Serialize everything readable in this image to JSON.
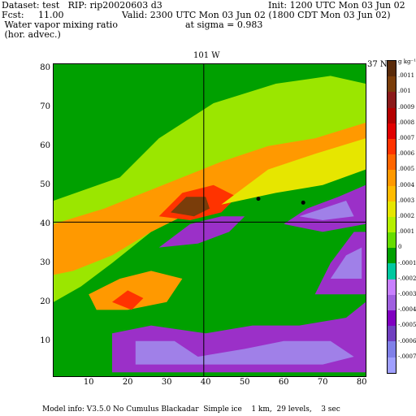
{
  "header": {
    "dataset_line": "Dataset: test   RIP: rip20020603 d3",
    "init_line": "Init: 1200 UTC Mon 03 Jun 02",
    "fcst_line": "Fcst:     11.00",
    "valid_line": "Valid: 2300 UTC Mon 03 Jun 02 (1800 CDT Mon 03 Jun 02)",
    "field_line1": " Water vapor mixing ratio",
    "field_line2": " (hor. advec.)",
    "sigma_line": "at sigma = 0.983"
  },
  "map": {
    "top_label": "101 W",
    "right_label": "37 N",
    "x_ticks": [
      "10",
      "20",
      "30",
      "40",
      "50",
      "60",
      "70",
      "80"
    ],
    "y_ticks": [
      "10",
      "20",
      "30",
      "40",
      "50",
      "60",
      "70",
      "80"
    ],
    "x_range": [
      1,
      81
    ],
    "y_range": [
      1,
      81
    ],
    "meridian_x": 39.5,
    "parallel_y": 40.5,
    "features": [
      {
        "name": "green-background-south",
        "color": "#00a000",
        "path": [
          [
            1,
            1
          ],
          [
            81,
            1
          ],
          [
            81,
            81
          ],
          [
            1,
            81
          ]
        ]
      },
      {
        "name": "dryline-lime-band",
        "color": "#9be600",
        "path": [
          [
            1,
            46
          ],
          [
            18,
            52
          ],
          [
            28,
            62
          ],
          [
            42,
            71
          ],
          [
            58,
            76
          ],
          [
            72,
            78
          ],
          [
            81,
            76
          ],
          [
            81,
            58
          ],
          [
            70,
            56
          ],
          [
            60,
            52
          ],
          [
            50,
            48
          ],
          [
            38,
            44
          ],
          [
            26,
            38
          ],
          [
            16,
            30
          ],
          [
            8,
            24
          ],
          [
            1,
            20
          ]
        ]
      },
      {
        "name": "moist-orange-axis",
        "color": "#ff9900",
        "path": [
          [
            1,
            40
          ],
          [
            14,
            44
          ],
          [
            24,
            48
          ],
          [
            34,
            52
          ],
          [
            44,
            56
          ],
          [
            56,
            60
          ],
          [
            68,
            62
          ],
          [
            81,
            66
          ],
          [
            81,
            56
          ],
          [
            70,
            52
          ],
          [
            58,
            50
          ],
          [
            46,
            47
          ],
          [
            36,
            43
          ],
          [
            26,
            38
          ],
          [
            16,
            32
          ],
          [
            6,
            28
          ],
          [
            1,
            27
          ]
        ]
      },
      {
        "name": "moist-red-core",
        "color": "#ff3300",
        "path": [
          [
            28,
            42
          ],
          [
            34,
            48
          ],
          [
            42,
            50
          ],
          [
            48,
            47
          ],
          [
            44,
            43
          ],
          [
            36,
            41
          ]
        ]
      },
      {
        "name": "moist-brown-max",
        "color": "#7a3d0a",
        "path": [
          [
            31,
            43
          ],
          [
            35,
            47
          ],
          [
            40,
            47
          ],
          [
            41,
            44
          ],
          [
            37,
            42
          ]
        ]
      },
      {
        "name": "moist-yellow-east",
        "color": "#e6e600",
        "path": [
          [
            44,
            45
          ],
          [
            56,
            54
          ],
          [
            68,
            58
          ],
          [
            81,
            62
          ],
          [
            81,
            54
          ],
          [
            70,
            50
          ],
          [
            58,
            48
          ]
        ]
      },
      {
        "name": "dry-purple-north",
        "color": "#9b30c8",
        "path": [
          [
            60,
            40
          ],
          [
            66,
            44
          ],
          [
            74,
            47
          ],
          [
            81,
            50
          ],
          [
            81,
            40
          ],
          [
            70,
            38
          ]
        ]
      },
      {
        "name": "dry-lavender-north",
        "color": "#a080e8",
        "path": [
          [
            64,
            42
          ],
          [
            70,
            44
          ],
          [
            76,
            46
          ],
          [
            78,
            42
          ],
          [
            70,
            41
          ]
        ]
      },
      {
        "name": "dry-purple-band",
        "color": "#9b30c8",
        "path": [
          [
            28,
            34
          ],
          [
            36,
            40
          ],
          [
            44,
            42
          ],
          [
            50,
            42
          ],
          [
            46,
            38
          ],
          [
            38,
            35
          ]
        ]
      },
      {
        "name": "moist-orange-south",
        "color": "#ff9900",
        "path": [
          [
            10,
            22
          ],
          [
            18,
            26
          ],
          [
            26,
            28
          ],
          [
            34,
            26
          ],
          [
            30,
            20
          ],
          [
            20,
            18
          ],
          [
            12,
            18
          ]
        ]
      },
      {
        "name": "moist-red-south",
        "color": "#ff3300",
        "path": [
          [
            16,
            20
          ],
          [
            20,
            23
          ],
          [
            24,
            21
          ],
          [
            21,
            18
          ]
        ]
      },
      {
        "name": "dry-purple-south",
        "color": "#9b30c8",
        "path": [
          [
            16,
            2
          ],
          [
            16,
            12
          ],
          [
            26,
            14
          ],
          [
            40,
            12
          ],
          [
            52,
            14
          ],
          [
            64,
            14
          ],
          [
            76,
            16
          ],
          [
            81,
            20
          ],
          [
            81,
            2
          ]
        ]
      },
      {
        "name": "dry-lavender-south",
        "color": "#a080e8",
        "path": [
          [
            22,
            4
          ],
          [
            22,
            10
          ],
          [
            32,
            10
          ],
          [
            38,
            6
          ],
          [
            50,
            8
          ],
          [
            60,
            10
          ],
          [
            72,
            10
          ],
          [
            78,
            6
          ],
          [
            70,
            4
          ],
          [
            60,
            4
          ],
          [
            48,
            4
          ],
          [
            36,
            4
          ]
        ]
      },
      {
        "name": "dry-purple-east",
        "color": "#9b30c8",
        "path": [
          [
            68,
            22
          ],
          [
            72,
            30
          ],
          [
            78,
            38
          ],
          [
            81,
            38
          ],
          [
            81,
            22
          ]
        ]
      },
      {
        "name": "dry-lavender-east",
        "color": "#a080e8",
        "path": [
          [
            72,
            26
          ],
          [
            76,
            32
          ],
          [
            80,
            34
          ],
          [
            80,
            26
          ]
        ]
      }
    ],
    "markers": [
      {
        "x": 53.5,
        "y": 46.5
      },
      {
        "x": 65,
        "y": 45.5
      }
    ]
  },
  "colorbar": {
    "top_label": "g kg⁻¹",
    "labels": [
      ".0011",
      ".001",
      ".0009",
      ".0008",
      ".0007",
      ".0006",
      ".0005",
      ".0004",
      ".0003",
      ".0002",
      ".0001",
      "0",
      "-.0001",
      "-.0002",
      "-.0003",
      "-.0004",
      "-.0005",
      "-.0006",
      "-.0007"
    ],
    "colors": [
      "#5a2b0a",
      "#7a3d0a",
      "#8b1a1a",
      "#b30000",
      "#e00000",
      "#ff3300",
      "#ff6600",
      "#ff9900",
      "#ffbb00",
      "#e6e600",
      "#b5f000",
      "#66dd00",
      "#00a000",
      "#00c8a0",
      "#c880ff",
      "#a060e0",
      "#8000c0",
      "#7040c0",
      "#8080e8",
      "#a0a0ff"
    ]
  },
  "footer": {
    "model_info": "Model info: V3.5.0 No Cumulus Blackadar  Simple ice    1 km,  29 levels,    3 sec"
  }
}
